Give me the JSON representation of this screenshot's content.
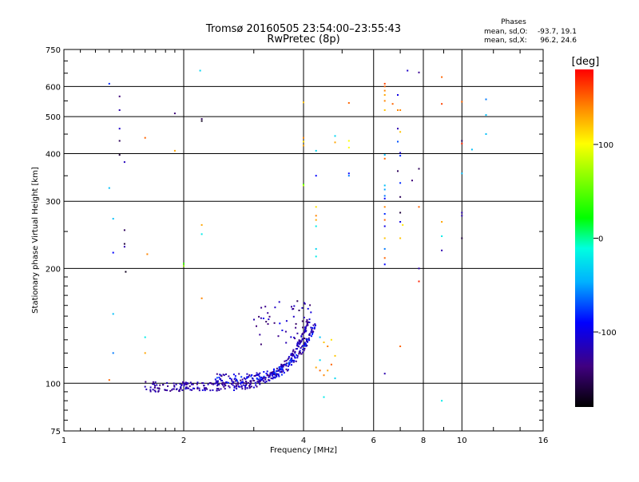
{
  "chart_data": {
    "type": "scatter",
    "title": "Tromsø 20160505 23:54:00–23:55:43",
    "subtitle": "RwPretec (8p)",
    "xlabel": "Frequency [MHz]",
    "ylabel": "Stationary phase Virtual Height [km]",
    "x_scale": "log",
    "y_scale": "log",
    "xlim": [
      1,
      16
    ],
    "ylim": [
      75,
      750
    ],
    "x_ticks": [
      1,
      2,
      4,
      6,
      8,
      10,
      16
    ],
    "x_tick_labels": [
      "1",
      "2",
      "4",
      "6",
      "8",
      "10",
      "16"
    ],
    "y_ticks": [
      75,
      100,
      200,
      300,
      400,
      500,
      600,
      750
    ],
    "y_tick_labels": [
      "75",
      "100",
      "200",
      "300",
      "400",
      "500",
      "600",
      "750"
    ],
    "grid": true,
    "phase_legend": {
      "heading": "Phases",
      "line_o_label": "mean, sd,O:",
      "line_o_value": "-93.7, 19.1",
      "line_x_label": "mean, sd,X:",
      "line_x_value": "96.2, 24.6"
    },
    "colorbar": {
      "label": "[deg]",
      "range": [
        -180,
        180
      ],
      "ticks": [
        100,
        0,
        -100
      ],
      "tick_labels": [
        "100",
        "0",
        "-100"
      ]
    },
    "colors": {
      "grid": "#000000",
      "background": "#ffffff"
    },
    "points": [
      [
        1.3,
        610,
        -80
      ],
      [
        1.38,
        565,
        -140
      ],
      [
        1.38,
        520,
        -120
      ],
      [
        1.38,
        465,
        -110
      ],
      [
        1.38,
        432,
        -150
      ],
      [
        1.38,
        397,
        -160
      ],
      [
        1.42,
        380,
        -115
      ],
      [
        1.3,
        325,
        -40
      ],
      [
        1.33,
        270,
        -40
      ],
      [
        1.42,
        252,
        -150
      ],
      [
        1.42,
        232,
        -160
      ],
      [
        1.42,
        228,
        -120
      ],
      [
        1.33,
        220,
        -90
      ],
      [
        1.43,
        196,
        -170
      ],
      [
        1.33,
        152,
        -40
      ],
      [
        1.33,
        120,
        -60
      ],
      [
        1.3,
        102,
        150
      ],
      [
        1.6,
        132,
        -20
      ],
      [
        1.6,
        120,
        130
      ],
      [
        1.6,
        440,
        150
      ],
      [
        1.62,
        218,
        140
      ],
      [
        1.9,
        510,
        -140
      ],
      [
        1.9,
        407,
        130
      ],
      [
        2.0,
        206,
        40
      ],
      [
        2.0,
        203,
        70
      ],
      [
        2.2,
        660,
        -30
      ],
      [
        2.22,
        487,
        -170
      ],
      [
        2.22,
        493,
        -150
      ],
      [
        2.22,
        260,
        130
      ],
      [
        2.22,
        246,
        -20
      ],
      [
        2.22,
        167,
        140
      ],
      [
        4.0,
        545,
        120
      ],
      [
        4.0,
        440,
        140
      ],
      [
        4.0,
        430,
        110
      ],
      [
        4.0,
        420,
        130
      ],
      [
        4.0,
        332,
        40
      ],
      [
        4.0,
        330,
        80
      ],
      [
        4.3,
        407,
        -30
      ],
      [
        4.3,
        350,
        -90
      ],
      [
        4.3,
        290,
        110
      ],
      [
        4.3,
        275,
        140
      ],
      [
        4.3,
        268,
        130
      ],
      [
        4.3,
        258,
        -20
      ],
      [
        4.3,
        225,
        -30
      ],
      [
        4.3,
        215,
        -20
      ],
      [
        4.3,
        110,
        130
      ],
      [
        4.5,
        92,
        -20
      ],
      [
        4.8,
        445,
        -30
      ],
      [
        4.8,
        428,
        130
      ],
      [
        5.2,
        543,
        150
      ],
      [
        5.2,
        432,
        100
      ],
      [
        5.2,
        415,
        100
      ],
      [
        5.2,
        355,
        -90
      ],
      [
        5.2,
        350,
        -60
      ],
      [
        6.4,
        610,
        160
      ],
      [
        6.4,
        600,
        150
      ],
      [
        6.4,
        585,
        140
      ],
      [
        6.4,
        570,
        130
      ],
      [
        6.4,
        550,
        140
      ],
      [
        6.4,
        520,
        120
      ],
      [
        6.4,
        397,
        -40
      ],
      [
        6.4,
        388,
        150
      ],
      [
        6.4,
        330,
        -40
      ],
      [
        6.4,
        322,
        -50
      ],
      [
        6.4,
        310,
        -60
      ],
      [
        6.4,
        305,
        -90
      ],
      [
        6.4,
        290,
        140
      ],
      [
        6.4,
        278,
        -80
      ],
      [
        6.4,
        268,
        150
      ],
      [
        6.4,
        258,
        -100
      ],
      [
        6.4,
        240,
        120
      ],
      [
        6.4,
        225,
        -60
      ],
      [
        6.4,
        213,
        150
      ],
      [
        6.4,
        205,
        -90
      ],
      [
        6.4,
        106,
        -120
      ],
      [
        6.9,
        570,
        -100
      ],
      [
        6.9,
        520,
        140
      ],
      [
        6.7,
        540,
        150
      ],
      [
        7.0,
        520,
        140
      ],
      [
        6.9,
        465,
        -120
      ],
      [
        7.0,
        456,
        120
      ],
      [
        6.9,
        430,
        -70
      ],
      [
        7.0,
        402,
        -110
      ],
      [
        7.0,
        395,
        -80
      ],
      [
        6.9,
        360,
        -150
      ],
      [
        7.0,
        335,
        -80
      ],
      [
        7.0,
        308,
        -150
      ],
      [
        7.0,
        280,
        -160
      ],
      [
        7.0,
        265,
        -100
      ],
      [
        7.1,
        260,
        110
      ],
      [
        7.0,
        240,
        120
      ],
      [
        7.0,
        125,
        150
      ],
      [
        7.3,
        660,
        -110
      ],
      [
        7.5,
        340,
        -140
      ],
      [
        7.8,
        653,
        -130
      ],
      [
        7.8,
        365,
        -150
      ],
      [
        7.8,
        290,
        150
      ],
      [
        7.8,
        200,
        -120
      ],
      [
        7.8,
        185,
        170
      ],
      [
        8.9,
        635,
        150
      ],
      [
        8.9,
        540,
        160
      ],
      [
        8.9,
        265,
        130
      ],
      [
        8.9,
        243,
        -20
      ],
      [
        8.9,
        223,
        -120
      ],
      [
        8.9,
        90,
        -20
      ],
      [
        10.0,
        547,
        150
      ],
      [
        10.0,
        432,
        -150
      ],
      [
        10.0,
        425,
        170
      ],
      [
        10.0,
        355,
        -40
      ],
      [
        10.0,
        280,
        -120
      ],
      [
        10.0,
        275,
        -120
      ],
      [
        10.0,
        240,
        -160
      ],
      [
        10.6,
        410,
        -40
      ],
      [
        11.5,
        555,
        -60
      ],
      [
        11.5,
        505,
        -40
      ],
      [
        11.5,
        450,
        -40
      ],
      [
        4.5,
        105,
        140
      ],
      [
        4.6,
        108,
        130
      ],
      [
        4.7,
        112,
        150
      ],
      [
        4.8,
        118,
        120
      ],
      [
        4.8,
        103,
        -30
      ],
      [
        4.6,
        125,
        140
      ],
      [
        4.7,
        130,
        110
      ],
      [
        4.4,
        132,
        -40
      ],
      [
        4.5,
        128,
        120
      ],
      [
        4.4,
        115,
        -30
      ],
      [
        4.4,
        108,
        150
      ]
    ]
  }
}
